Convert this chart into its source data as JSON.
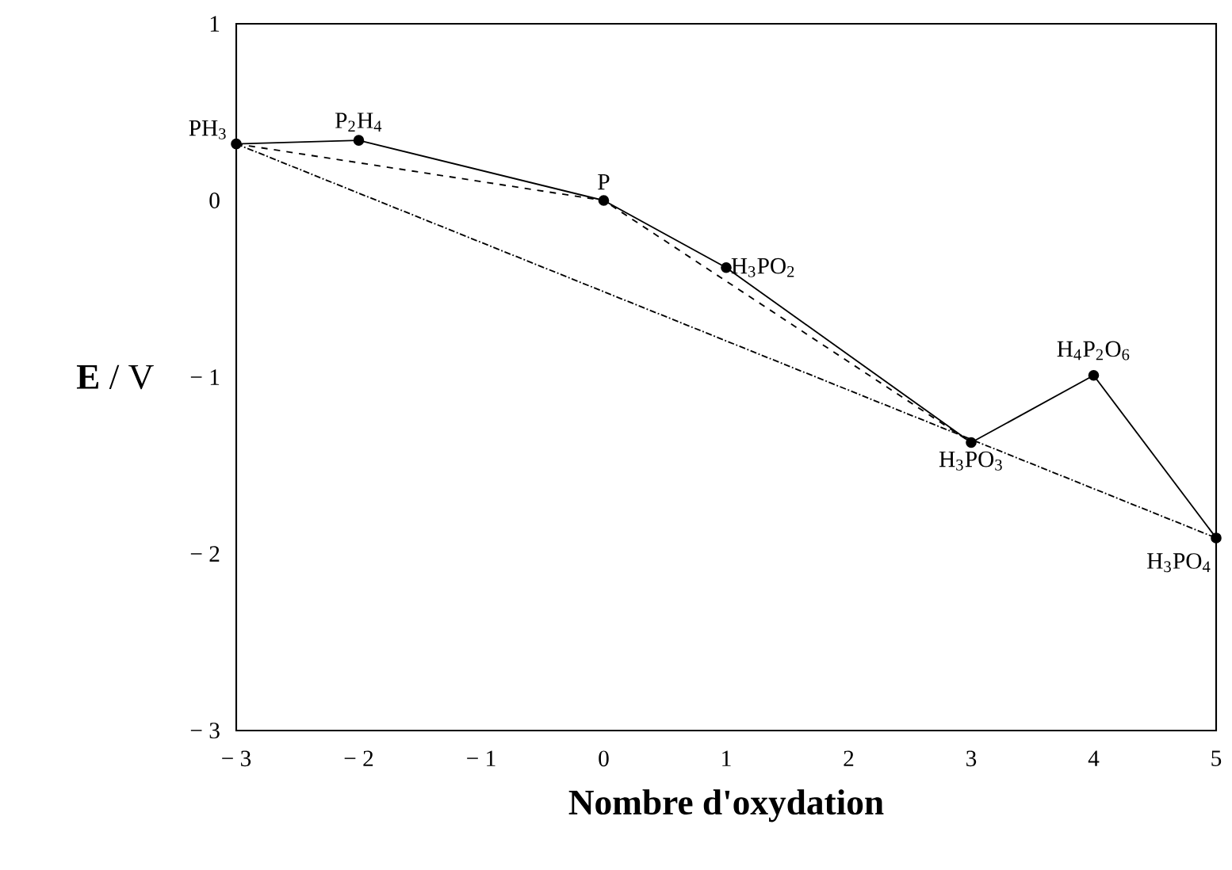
{
  "chart_data": {
    "type": "line",
    "xlabel": "Nombre d'oxydation",
    "ylabel": "**E** / V",
    "xlim": [
      -3,
      5
    ],
    "ylim": [
      -3,
      1
    ],
    "xticks": [
      {
        "value": -3,
        "label": "− 3"
      },
      {
        "value": -2,
        "label": "− 2"
      },
      {
        "value": -1,
        "label": "− 1"
      },
      0,
      1,
      2,
      3,
      4,
      5
    ],
    "yticks": [
      {
        "value": -3,
        "label": "− 3"
      },
      {
        "value": -2,
        "label": "− 2"
      },
      {
        "value": -1,
        "label": "− 1"
      },
      0,
      1
    ],
    "grid": false,
    "series": [
      {
        "color": "#000000",
        "marker": "circle",
        "line_style": "solid",
        "x": [
          -3,
          -2,
          0,
          1,
          3,
          4,
          5
        ],
        "values": [
          0.32,
          0.34,
          0.0,
          -0.38,
          -1.37,
          -0.99,
          -1.91
        ]
      },
      {
        "color": "#000000",
        "marker": "none",
        "line_style": "dashed",
        "x": [
          -3,
          0,
          3
        ],
        "values": [
          0.32,
          0.0,
          -1.37
        ]
      },
      {
        "color": "#000000",
        "marker": "none",
        "line_style": "dotted",
        "x": [
          -3,
          5
        ],
        "values": [
          0.32,
          -1.91
        ]
      }
    ],
    "annotations": [
      {
        "text": "PH$_{3}$",
        "x": -3,
        "y": 0.32
      },
      {
        "text": "P$_{2}$H$_{4}$",
        "x": -2,
        "y": 0.34
      },
      {
        "text": "P",
        "x": 0,
        "y": 0.0
      },
      {
        "text": "H$_{3}$PO$_{2}$",
        "x": 1,
        "y": -0.38
      },
      {
        "text": "H$_{3}$PO$_{3}$",
        "x": 3,
        "y": -1.37
      },
      {
        "text": "H$_{4}$P$_{2}$O$_{6}$",
        "x": 4,
        "y": -0.99
      },
      {
        "text": "H$_{3}$PO$_{4}$",
        "x": 5,
        "y": -1.91
      }
    ]
  }
}
